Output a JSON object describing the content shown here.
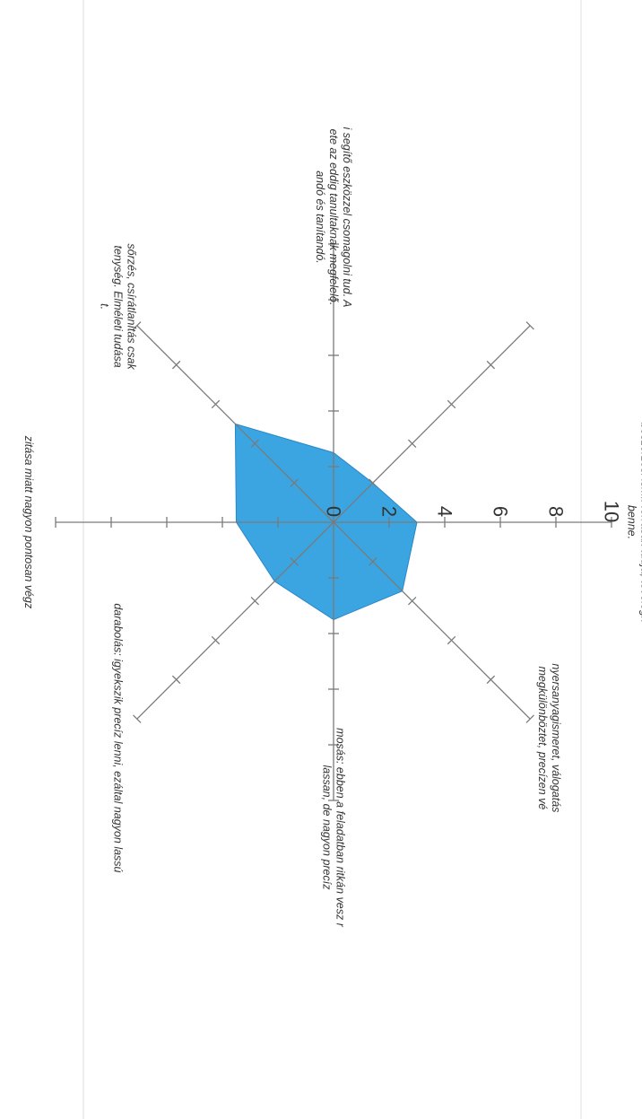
{
  "chart_data": {
    "type": "radar",
    "title": "",
    "radial_ticks": [
      "0",
      "2",
      "4",
      "6",
      "8",
      "10"
    ],
    "rmax": 10,
    "categories": [
      [
        "beszerzési ism.: forrásait tudja, tevőlegk",
        "benne."
      ],
      [
        "nyersanyagismeret, válogatás",
        "megkülönböztet, precízen vé"
      ],
      [
        "mosás: ebben a feladatban ritkán vesz r",
        "lassan, de nagyon precíz"
      ],
      [
        "darabolás: igyekszik precíz lenni, ezáltal nagyon lassú"
      ],
      [
        "zitása miatt nagyon pontosan végz"
      ],
      [
        "sőrzés, csírátlanítás csak",
        "tenység. Elméleti tudása",
        "t."
      ],
      [
        "i segítő eszközzel csomagolni tud. A",
        "ete az eddig tanultaknak megfelelő.",
        "andó és tanítandó."
      ],
      [
        ""
      ]
    ],
    "series": [
      {
        "values": [
          3,
          3.5,
          3.5,
          3,
          3.5,
          5,
          2.5,
          2
        ]
      }
    ]
  }
}
